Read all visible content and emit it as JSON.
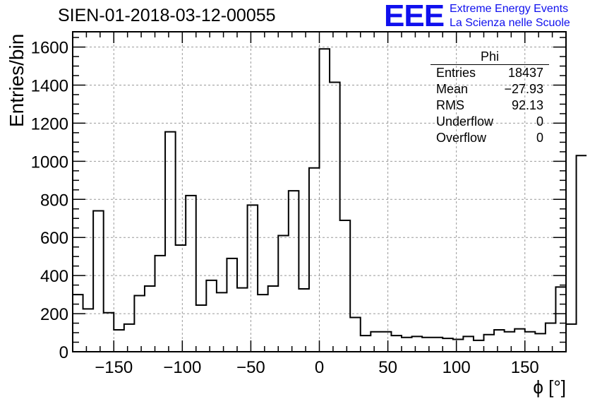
{
  "header": {
    "title": "SIEN-01-2018-03-12-00055",
    "logo_text": "EEE",
    "logo_line1": "Extreme Energy Events",
    "logo_line2": "La Scienza nelle Scuole",
    "logo_color": "#1010ee"
  },
  "stats_box": {
    "title": "Phi",
    "rows": [
      {
        "label": "Entries",
        "value": "18437"
      },
      {
        "label": "Mean",
        "value": "−27.93"
      },
      {
        "label": "RMS",
        "value": "92.13"
      },
      {
        "label": "Underflow",
        "value": "0"
      },
      {
        "label": "Overflow",
        "value": "0"
      }
    ]
  },
  "chart_data": {
    "type": "bar",
    "style": "step-histogram",
    "title": "SIEN-01-2018-03-12-00055",
    "xlabel": "ϕ [°]",
    "ylabel": "Entries/bin",
    "xlim": [
      -180,
      180
    ],
    "ylim": [
      0,
      1680
    ],
    "bin_width": 7.5,
    "x_ticks": [
      -150,
      -100,
      -50,
      0,
      50,
      100,
      150
    ],
    "y_ticks": [
      0,
      200,
      400,
      600,
      800,
      1000,
      1200,
      1400,
      1600
    ],
    "grid": true,
    "line_color": "#000000",
    "values": [
      300,
      225,
      740,
      205,
      115,
      145,
      295,
      345,
      505,
      1155,
      560,
      820,
      245,
      375,
      310,
      490,
      335,
      770,
      300,
      345,
      610,
      845,
      330,
      965,
      1590,
      1415,
      690,
      180,
      85,
      105,
      105,
      85,
      75,
      80,
      75,
      75,
      70,
      65,
      80,
      60,
      90,
      115,
      105,
      120,
      105,
      95,
      150,
      340,
      145,
      1030
    ]
  }
}
